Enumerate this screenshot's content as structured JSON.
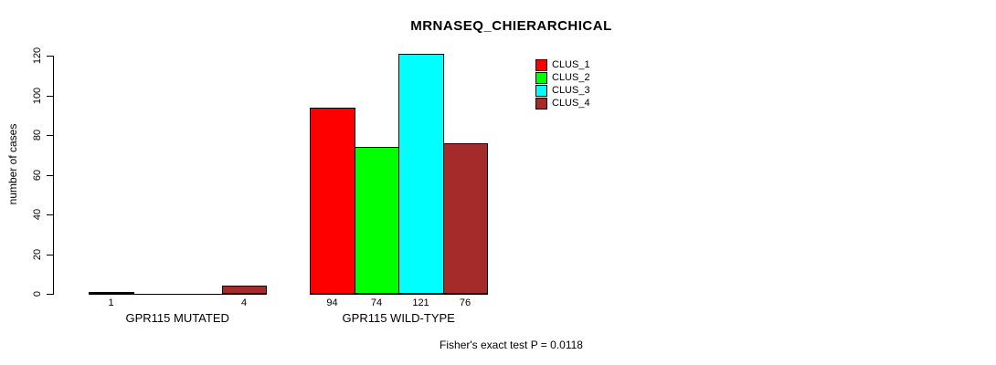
{
  "chart_data": {
    "type": "bar",
    "title": "MRNASEQ_CHIERARCHICAL",
    "ylabel": "number of cases",
    "xlabel": "",
    "ylim": [
      0,
      121
    ],
    "yticks": [
      0,
      20,
      40,
      60,
      80,
      100,
      120
    ],
    "grid": false,
    "groups": [
      "GPR115 MUTATED",
      "GPR115 WILD-TYPE"
    ],
    "series": [
      {
        "name": "CLUS_1",
        "color": "#ff0000",
        "values": [
          1,
          94
        ]
      },
      {
        "name": "CLUS_2",
        "color": "#00ff00",
        "values": [
          0,
          74
        ]
      },
      {
        "name": "CLUS_3",
        "color": "#00ffff",
        "values": [
          0,
          121
        ]
      },
      {
        "name": "CLUS_4",
        "color": "#a52a2a",
        "values": [
          4,
          76
        ]
      }
    ],
    "bar_value_labels": [
      "1",
      "4",
      "94",
      "74",
      "121",
      "76"
    ],
    "legend": {
      "position": "top-right",
      "entries": [
        "CLUS_1",
        "CLUS_2",
        "CLUS_3",
        "CLUS_4"
      ]
    },
    "annotation": "Fisher's exact test P = 0.0118"
  }
}
